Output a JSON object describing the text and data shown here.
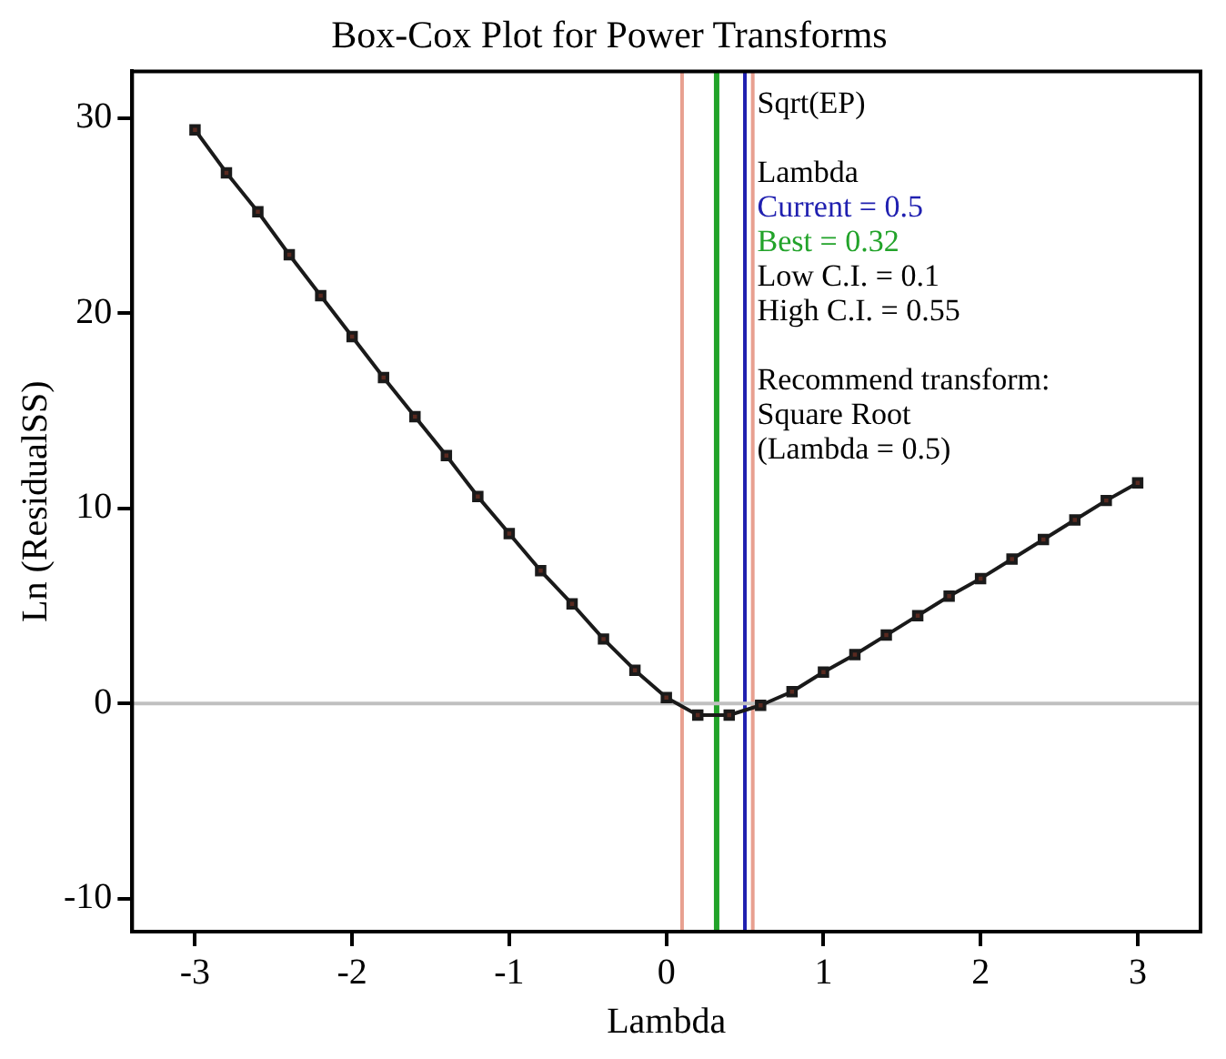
{
  "chart_data": {
    "type": "line",
    "title": "Box-Cox Plot for Power Transforms",
    "xlabel": "Lambda",
    "ylabel": "Ln (ResidualSS)",
    "x": [
      -3,
      -2.8,
      -2.6,
      -2.4,
      -2.2,
      -2,
      -1.8,
      -1.6,
      -1.4,
      -1.2,
      -1,
      -0.8,
      -0.6,
      -0.4,
      -0.2,
      0,
      0.2,
      0.4,
      0.6,
      0.8,
      1,
      1.2,
      1.4,
      1.6,
      1.8,
      2,
      2.2,
      2.4,
      2.6,
      2.8,
      3
    ],
    "series": [
      {
        "color": "#1a1a1a",
        "values": [
          29.4,
          27.2,
          25.2,
          23.0,
          20.9,
          18.8,
          16.7,
          14.7,
          12.7,
          10.6,
          8.7,
          6.8,
          5.1,
          3.3,
          1.7,
          0.3,
          -0.6,
          -0.6,
          -0.1,
          0.6,
          1.6,
          2.5,
          3.5,
          4.5,
          5.5,
          6.4,
          7.4,
          8.4,
          9.4,
          10.4,
          11.3
        ]
      }
    ],
    "xlim": [
      -3.4,
      3.4
    ],
    "xticks": [
      -3,
      -2,
      -1,
      0,
      1,
      2,
      3
    ],
    "ylim": [
      -11.7,
      32.4
    ],
    "yticks": [
      -10,
      0,
      10,
      20,
      30
    ],
    "marker": "square",
    "grid": false,
    "legend": false,
    "ref_lines": [
      {
        "axis": "x",
        "value": 0.32,
        "color": "#22a32a"
      },
      {
        "axis": "x",
        "value": 0.5,
        "color": "#2020b0"
      },
      {
        "axis": "x",
        "value": 0.1,
        "color": "#e8a090"
      },
      {
        "axis": "x",
        "value": 0.55,
        "color": "#e8a090"
      },
      {
        "axis": "y",
        "value": 0,
        "color": "#c0c0c0"
      }
    ],
    "annotations": [
      "Sqrt(EP)",
      "Lambda",
      "Current = 0.5",
      "Best = 0.32",
      "Low C.I. = 0.1",
      "High C.I. = 0.55",
      "Recommend transform:",
      "Square Root",
      "(Lambda = 0.5)"
    ]
  }
}
